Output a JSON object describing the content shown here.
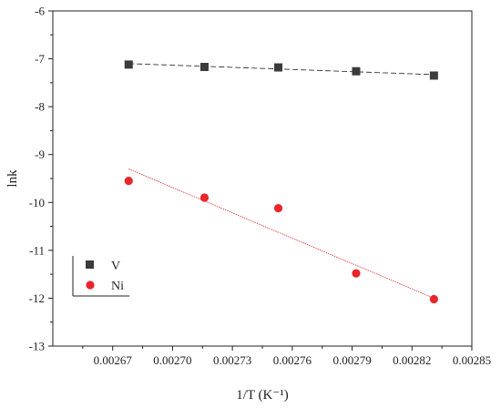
{
  "chart_data": {
    "type": "scatter",
    "xlabel": "1/T (K⁻¹)",
    "ylabel": "lnk",
    "xlim": [
      0.00264,
      0.00285
    ],
    "ylim": [
      -13,
      -6
    ],
    "x_ticks": [
      "0.00267",
      "0.00270",
      "0.00273",
      "0.00276",
      "0.00279",
      "0.00282",
      "0.00285"
    ],
    "y_ticks": [
      "-13",
      "-12",
      "-11",
      "-10",
      "-9",
      "-8",
      "-7",
      "-6"
    ],
    "grid": false,
    "legend_position": "bottom-left",
    "series": [
      {
        "name": "V",
        "marker": "square",
        "color": "#3b3b3b",
        "x": [
          0.002678,
          0.002716,
          0.002753,
          0.002792,
          0.002831
        ],
        "y": [
          -7.12,
          -7.17,
          -7.18,
          -7.26,
          -7.35
        ],
        "fit": {
          "x": [
            0.002678,
            0.002831
          ],
          "y": [
            -7.1,
            -7.33
          ]
        }
      },
      {
        "name": "Ni",
        "marker": "circle",
        "color": "#e8262c",
        "x": [
          0.002678,
          0.002716,
          0.002753,
          0.002792,
          0.002831
        ],
        "y": [
          -9.55,
          -9.9,
          -10.12,
          -11.48,
          -12.02
        ],
        "fit": {
          "x": [
            0.002678,
            0.002831
          ],
          "y": [
            -9.3,
            -12.0
          ]
        }
      }
    ]
  }
}
